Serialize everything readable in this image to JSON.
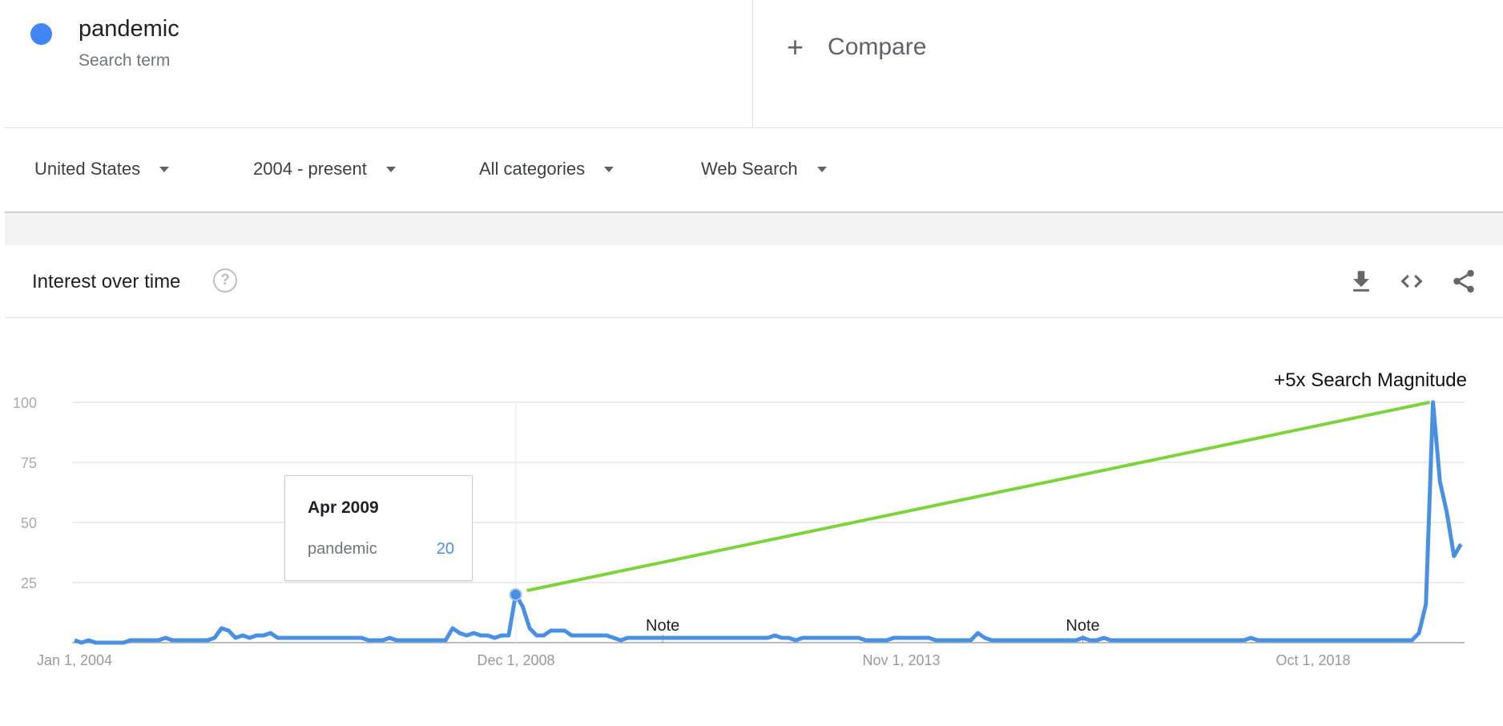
{
  "search_term": {
    "name": "pandemic",
    "subtitle": "Search term",
    "color": "#4285f4"
  },
  "compare": {
    "icon": "plus-icon",
    "label": "Compare"
  },
  "filters": [
    {
      "label": "United States"
    },
    {
      "label": "2004 - present"
    },
    {
      "label": "All categories"
    },
    {
      "label": "Web Search"
    }
  ],
  "card": {
    "title": "Interest over time",
    "help_icon": "?",
    "actions": [
      "download-icon",
      "embed-code-icon",
      "share-icon"
    ]
  },
  "tooltip": {
    "date": "Apr 2009",
    "term": "pandemic",
    "value": "20"
  },
  "chart_data": {
    "type": "line",
    "ylim": [
      0,
      100
    ],
    "yticks": [
      "100",
      "75",
      "50",
      "25"
    ],
    "xtick_labels": [
      "Jan 1, 2004",
      "Dec 1, 2008",
      "Nov 1, 2013",
      "Oct 1, 2018"
    ],
    "grid": true,
    "series": [
      {
        "name": "pandemic",
        "color": "#4a90e2",
        "x": [
          "2004-01",
          "2004-02",
          "2004-03",
          "2004-04",
          "2004-05",
          "2004-06",
          "2004-07",
          "2004-08",
          "2004-09",
          "2004-10",
          "2004-11",
          "2004-12",
          "2005-01",
          "2005-02",
          "2005-03",
          "2005-04",
          "2005-05",
          "2005-06",
          "2005-07",
          "2005-08",
          "2005-09",
          "2005-10",
          "2005-11",
          "2005-12",
          "2006-01",
          "2006-02",
          "2006-03",
          "2006-04",
          "2006-05",
          "2006-06",
          "2006-07",
          "2006-08",
          "2006-09",
          "2006-10",
          "2006-11",
          "2006-12",
          "2007-01",
          "2007-02",
          "2007-03",
          "2007-04",
          "2007-05",
          "2007-06",
          "2007-07",
          "2007-08",
          "2007-09",
          "2007-10",
          "2007-11",
          "2007-12",
          "2008-01",
          "2008-02",
          "2008-03",
          "2008-04",
          "2008-05",
          "2008-06",
          "2008-07",
          "2008-08",
          "2008-09",
          "2008-10",
          "2008-11",
          "2008-12",
          "2009-01",
          "2009-02",
          "2009-03",
          "2009-04",
          "2009-05",
          "2009-06",
          "2009-07",
          "2009-08",
          "2009-09",
          "2009-10",
          "2009-11",
          "2009-12",
          "2010-01",
          "2010-02",
          "2010-03",
          "2010-04",
          "2010-05",
          "2010-06",
          "2010-07",
          "2010-08",
          "2010-09",
          "2010-10",
          "2010-11",
          "2010-12",
          "2011-01",
          "2011-02",
          "2011-03",
          "2011-04",
          "2011-05",
          "2011-06",
          "2011-07",
          "2011-08",
          "2011-09",
          "2011-10",
          "2011-11",
          "2011-12",
          "2012-01",
          "2012-02",
          "2012-03",
          "2012-04",
          "2012-05",
          "2012-06",
          "2012-07",
          "2012-08",
          "2012-09",
          "2012-10",
          "2012-11",
          "2012-12",
          "2013-01",
          "2013-02",
          "2013-03",
          "2013-04",
          "2013-05",
          "2013-06",
          "2013-07",
          "2013-08",
          "2013-09",
          "2013-10",
          "2013-11",
          "2013-12",
          "2014-01",
          "2014-02",
          "2014-03",
          "2014-04",
          "2014-05",
          "2014-06",
          "2014-07",
          "2014-08",
          "2014-09",
          "2014-10",
          "2014-11",
          "2014-12",
          "2015-01",
          "2015-02",
          "2015-03",
          "2015-04",
          "2015-05",
          "2015-06",
          "2015-07",
          "2015-08",
          "2015-09",
          "2015-10",
          "2015-11",
          "2015-12",
          "2016-01",
          "2016-02",
          "2016-03",
          "2016-04",
          "2016-05",
          "2016-06",
          "2016-07",
          "2016-08",
          "2016-09",
          "2016-10",
          "2016-11",
          "2016-12",
          "2017-01",
          "2017-02",
          "2017-03",
          "2017-04",
          "2017-05",
          "2017-06",
          "2017-07",
          "2017-08",
          "2017-09",
          "2017-10",
          "2017-11",
          "2017-12",
          "2018-01",
          "2018-02",
          "2018-03",
          "2018-04",
          "2018-05",
          "2018-06",
          "2018-07",
          "2018-08",
          "2018-09",
          "2018-10",
          "2018-11",
          "2018-12",
          "2019-01",
          "2019-02",
          "2019-03",
          "2019-04",
          "2019-05",
          "2019-06",
          "2019-07",
          "2019-08",
          "2019-09",
          "2019-10",
          "2019-11",
          "2019-12",
          "2020-01",
          "2020-02",
          "2020-03",
          "2020-04",
          "2020-05",
          "2020-06",
          "2020-07"
        ],
        "values": [
          1,
          0,
          1,
          0,
          0,
          0,
          0,
          0,
          1,
          1,
          1,
          1,
          1,
          2,
          1,
          1,
          1,
          1,
          1,
          1,
          2,
          6,
          5,
          2,
          3,
          2,
          3,
          3,
          4,
          2,
          2,
          2,
          2,
          2,
          2,
          2,
          2,
          2,
          2,
          2,
          2,
          2,
          1,
          1,
          1,
          2,
          1,
          1,
          1,
          1,
          1,
          1,
          1,
          1,
          6,
          4,
          3,
          4,
          3,
          3,
          2,
          3,
          3,
          20,
          15,
          6,
          3,
          3,
          5,
          5,
          5,
          3,
          3,
          3,
          3,
          3,
          3,
          2,
          1,
          2,
          2,
          2,
          2,
          2,
          2,
          2,
          2,
          2,
          2,
          2,
          2,
          2,
          2,
          2,
          2,
          2,
          2,
          2,
          2,
          2,
          3,
          2,
          2,
          1,
          2,
          2,
          2,
          2,
          2,
          2,
          2,
          2,
          2,
          1,
          1,
          1,
          1,
          2,
          2,
          2,
          2,
          2,
          2,
          1,
          1,
          1,
          1,
          1,
          1,
          4,
          2,
          1,
          1,
          1,
          1,
          1,
          1,
          1,
          1,
          1,
          1,
          1,
          1,
          1,
          2,
          1,
          1,
          2,
          1,
          1,
          1,
          1,
          1,
          1,
          1,
          1,
          1,
          1,
          1,
          1,
          1,
          1,
          1,
          1,
          1,
          1,
          1,
          1,
          2,
          1,
          1,
          1,
          1,
          1,
          1,
          1,
          1,
          1,
          1,
          1,
          1,
          1,
          1,
          1,
          1,
          1,
          1,
          1,
          1,
          1,
          1,
          1,
          4,
          16,
          100,
          67,
          54,
          36,
          41
        ]
      }
    ],
    "highlight": {
      "date": "2009-04",
      "value": 20
    },
    "notes": [
      {
        "date": "2011-01",
        "label": "Note"
      },
      {
        "date": "2016-01",
        "label": "Note"
      }
    ],
    "annotation": {
      "label": "+5x Search Magnitude",
      "color": "#7ed23c",
      "from": {
        "date": "2009-04",
        "value": 20
      },
      "to": {
        "date": "2020-03",
        "value": 100
      }
    }
  }
}
